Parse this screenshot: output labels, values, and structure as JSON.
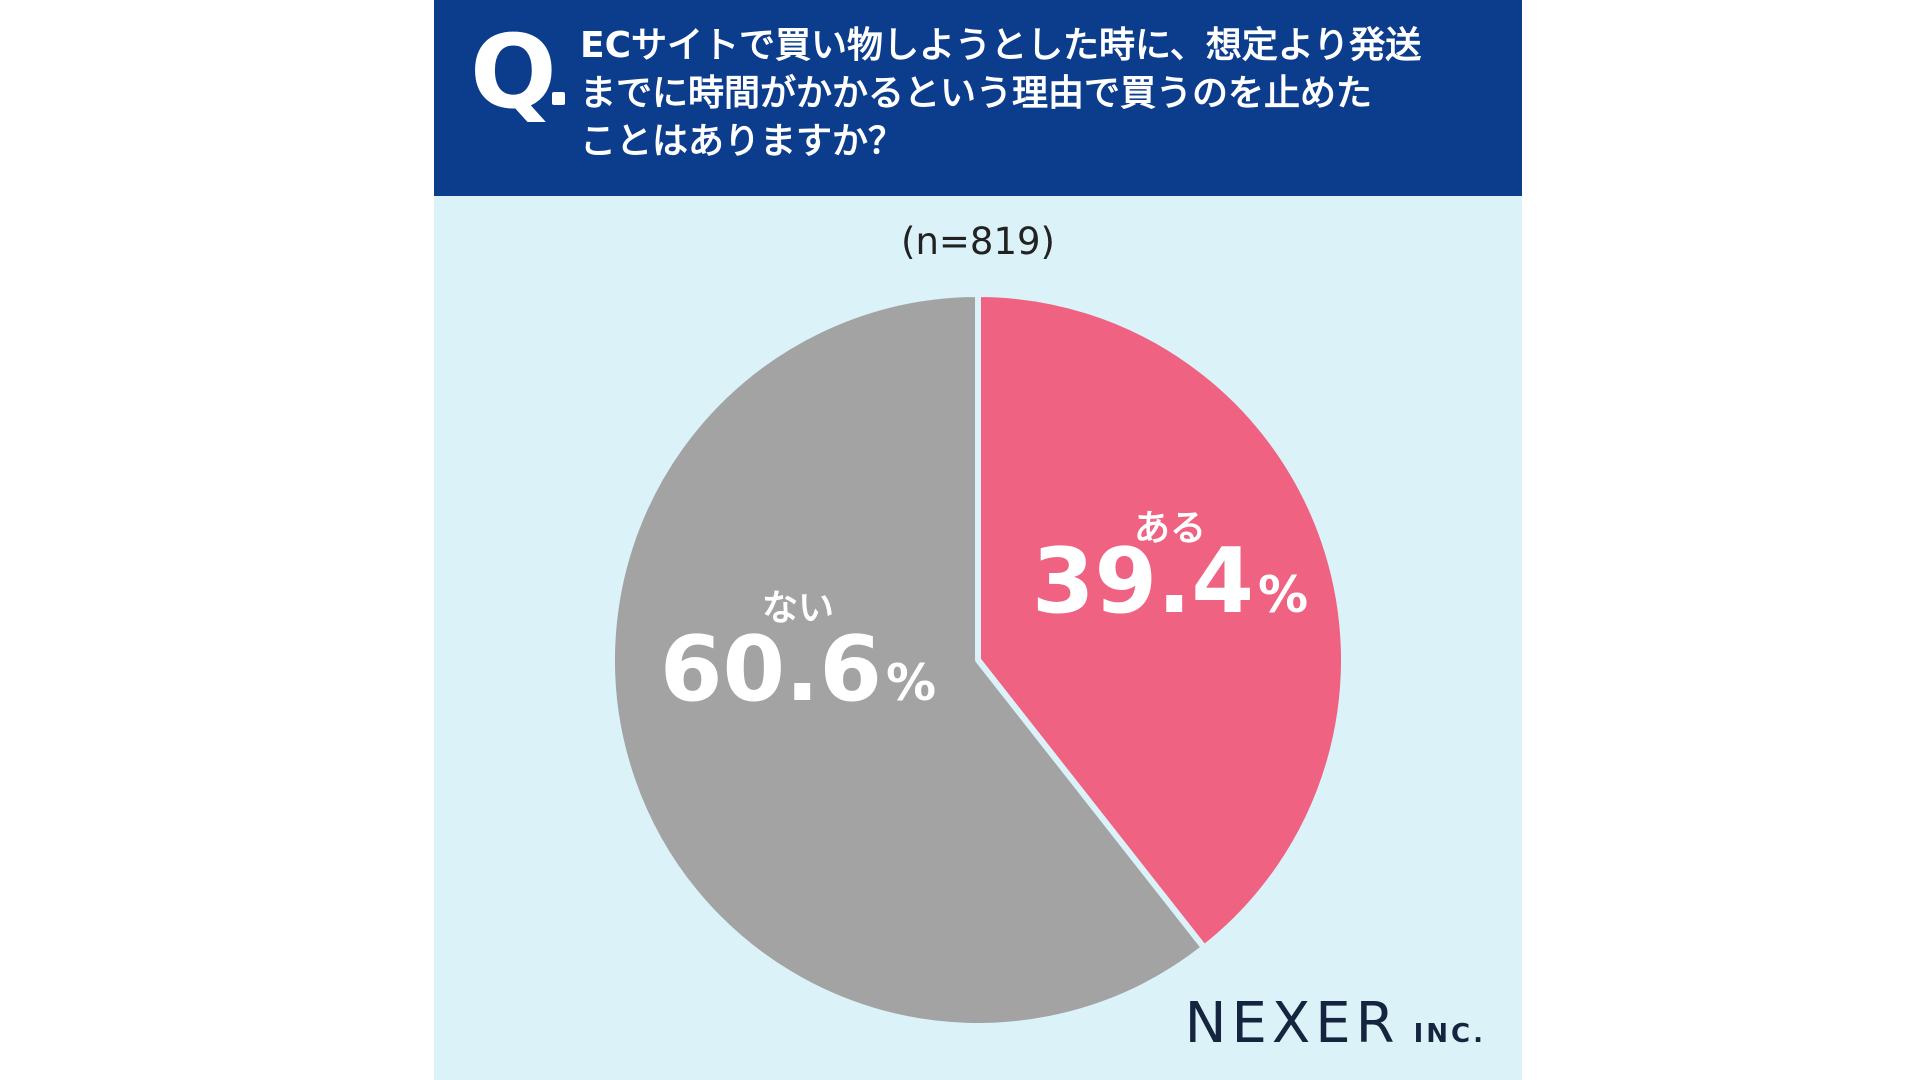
{
  "header": {
    "q_mark": "Q",
    "question_lines": [
      "ECサイトで買い物しようとした時に、想定より発送",
      "までに時間がかかるという理由で買うのを止めた",
      "ことはありますか？"
    ]
  },
  "sample_size": "(n=819)",
  "chart_data": {
    "type": "pie",
    "categories": [
      "ある",
      "ない"
    ],
    "values": [
      39.4,
      60.6
    ],
    "value_labels": [
      "39.4",
      "60.6"
    ],
    "unit": "%",
    "colors": [
      "#ef6282",
      "#a3a3a3"
    ],
    "start": "12 o'clock, clockwise"
  },
  "logo": {
    "name": "NEXER",
    "suffix": "INC."
  },
  "colors": {
    "header_bg": "#0c3c8c",
    "card_bg": "#dbf3f8",
    "text_on_slice": "#ffffff",
    "logo": "#15243f"
  }
}
